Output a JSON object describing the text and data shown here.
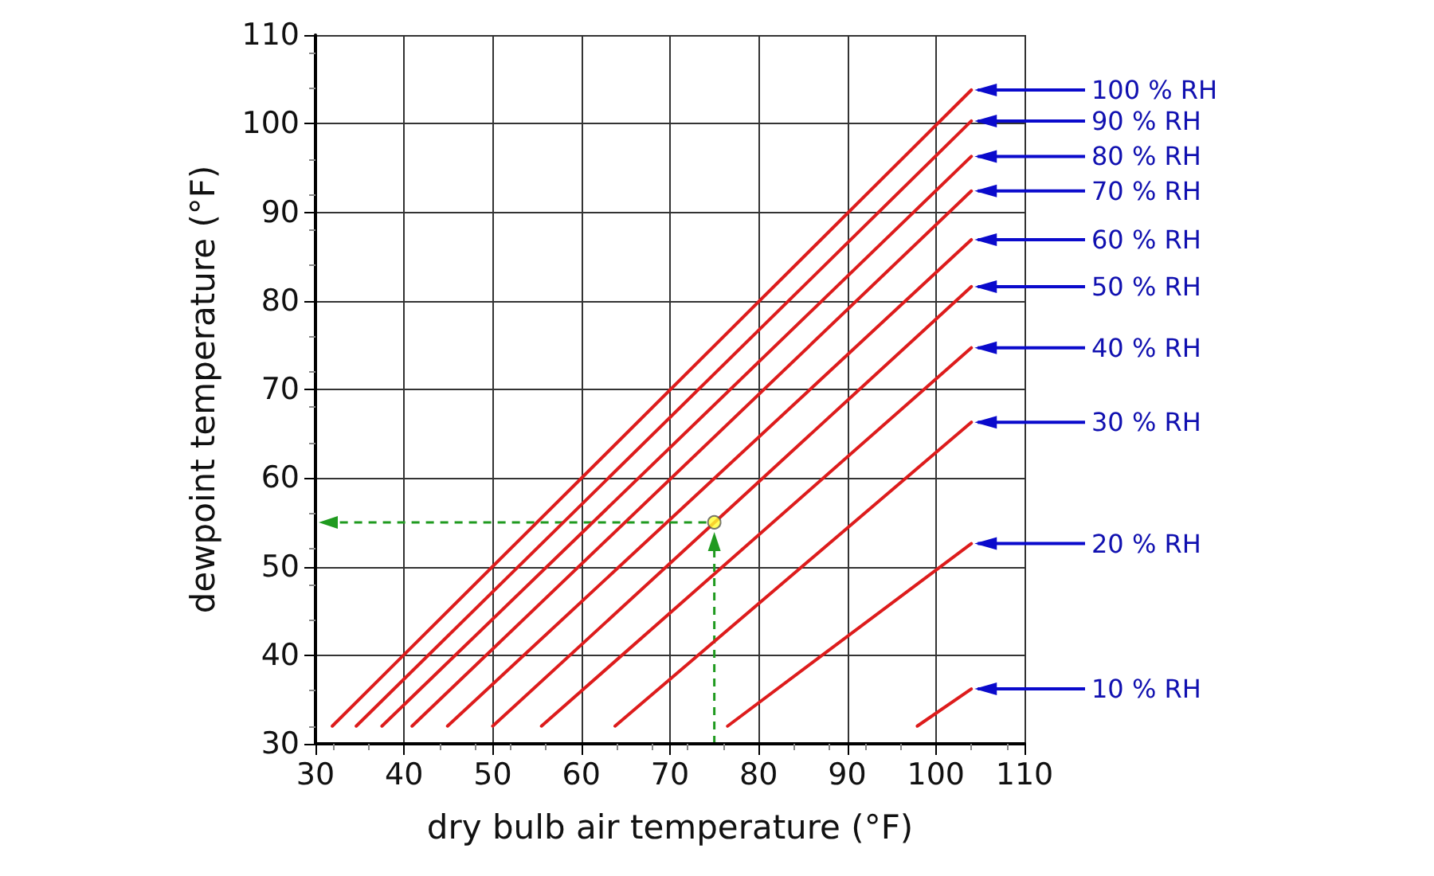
{
  "chart_data": {
    "type": "line",
    "xlabel": "dry bulb air temperature (°F)",
    "ylabel": "dewpoint temperature (°F)",
    "xlim": [
      30,
      110
    ],
    "xticks": [
      30,
      40,
      50,
      60,
      70,
      80,
      90,
      100,
      110
    ],
    "ylim": [
      30,
      110
    ],
    "yticks": [
      30,
      40,
      50,
      60,
      70,
      80,
      90,
      100,
      110
    ],
    "grid": true,
    "legend": false,
    "marker": "none",
    "line_style": "solid",
    "series": [
      {
        "name": "100 % RH",
        "color": "#dd1c1c",
        "x": [
          31.9,
          104
        ],
        "values": [
          32,
          103.8
        ]
      },
      {
        "name": "90 % RH",
        "color": "#dd1c1c",
        "x": [
          34.6,
          104
        ],
        "values": [
          32,
          100.3
        ]
      },
      {
        "name": "80 % RH",
        "color": "#dd1c1c",
        "x": [
          37.5,
          104
        ],
        "values": [
          32,
          96.3
        ]
      },
      {
        "name": "70 % RH",
        "color": "#dd1c1c",
        "x": [
          40.9,
          104
        ],
        "values": [
          32,
          92.4
        ]
      },
      {
        "name": "60 % RH",
        "color": "#dd1c1c",
        "x": [
          44.9,
          104
        ],
        "values": [
          32,
          86.9
        ]
      },
      {
        "name": "50 % RH",
        "color": "#dd1c1c",
        "x": [
          50,
          104
        ],
        "values": [
          32,
          81.6
        ]
      },
      {
        "name": "40 % RH",
        "color": "#dd1c1c",
        "x": [
          55.5,
          104
        ],
        "values": [
          32,
          74.7
        ]
      },
      {
        "name": "30 % RH",
        "color": "#dd1c1c",
        "x": [
          63.8,
          104
        ],
        "values": [
          32,
          66.3
        ]
      },
      {
        "name": "20 % RH",
        "color": "#dd1c1c",
        "x": [
          76.5,
          104
        ],
        "values": [
          32,
          52.6
        ]
      },
      {
        "name": "10 % RH",
        "color": "#dd1c1c",
        "x": [
          97.9,
          104
        ],
        "values": [
          32,
          36.2
        ]
      },
      {
        "type": "scatter",
        "marker": "circle",
        "color": "#ffff33",
        "x": [
          75
        ],
        "values": [
          55
        ]
      }
    ]
  }
}
